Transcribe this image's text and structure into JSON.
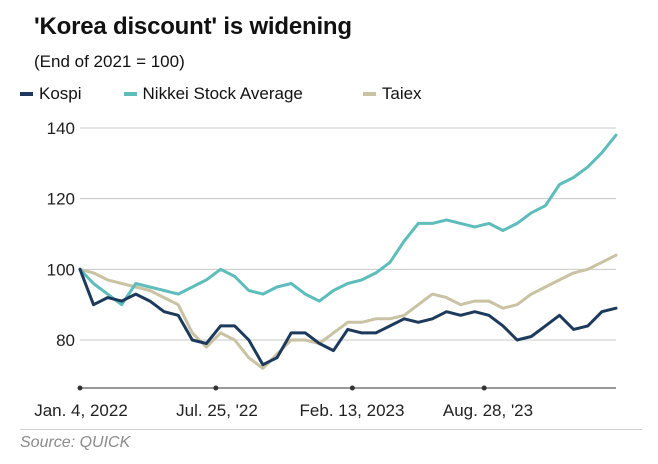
{
  "title": "'Korea discount' is widening",
  "subtitle": "(End of 2021 = 100)",
  "source": "Source: QUICK",
  "colors": {
    "kospi": "#1d3a5c",
    "nikkei": "#5dbdbb",
    "taiex": "#c9c2a3",
    "grid": "#c8c8c8",
    "axis": "#333333"
  },
  "chart_data": {
    "type": "line",
    "title": "'Korea discount' is widening",
    "subtitle": "(End of 2021 = 100)",
    "xlabel": "",
    "ylabel": "",
    "ylim": [
      70,
      140
    ],
    "yticks": [
      80,
      100,
      120,
      140
    ],
    "grid": "horizontal",
    "legend": "top-left",
    "xtick_labels": [
      "Jan. 4, 2022",
      "Jul. 25, '22",
      "Feb. 13, 2023",
      "Aug. 28, '23"
    ],
    "x": [
      "2022-01-04",
      "2022-01-24",
      "2022-02-14",
      "2022-03-07",
      "2022-03-28",
      "2022-04-18",
      "2022-05-09",
      "2022-05-30",
      "2022-06-20",
      "2022-07-11",
      "2022-08-01",
      "2022-08-22",
      "2022-09-12",
      "2022-10-03",
      "2022-10-24",
      "2022-11-14",
      "2022-12-05",
      "2022-12-26",
      "2023-01-16",
      "2023-02-06",
      "2023-02-27",
      "2023-03-20",
      "2023-04-10",
      "2023-05-01",
      "2023-05-22",
      "2023-06-12",
      "2023-07-03",
      "2023-07-24",
      "2023-08-14",
      "2023-09-04",
      "2023-09-25",
      "2023-10-16",
      "2023-11-06",
      "2023-11-27",
      "2023-12-18",
      "2024-01-08",
      "2024-01-29",
      "2024-02-19",
      "2024-03-11"
    ],
    "series": [
      {
        "name": "Kospi",
        "values": [
          100,
          90,
          92,
          91,
          93,
          91,
          88,
          87,
          80,
          79,
          84,
          84,
          80,
          73,
          75,
          82,
          82,
          79,
          77,
          83,
          82,
          82,
          84,
          86,
          85,
          86,
          88,
          87,
          88,
          87,
          84,
          80,
          81,
          84,
          87,
          83,
          84,
          88,
          89
        ]
      },
      {
        "name": "Nikkei Stock Average",
        "values": [
          100,
          96,
          93,
          90,
          96,
          95,
          94,
          93,
          95,
          97,
          100,
          98,
          94,
          93,
          95,
          96,
          93,
          91,
          94,
          96,
          97,
          99,
          102,
          108,
          113,
          113,
          114,
          113,
          112,
          113,
          111,
          113,
          116,
          118,
          124,
          126,
          129,
          133,
          138
        ]
      },
      {
        "name": "Taiex",
        "values": [
          100,
          99,
          97,
          96,
          95,
          94,
          92,
          90,
          82,
          78,
          82,
          80,
          75,
          72,
          76,
          80,
          80,
          79,
          82,
          85,
          85,
          86,
          86,
          87,
          90,
          93,
          92,
          90,
          91,
          91,
          89,
          90,
          93,
          95,
          97,
          99,
          100,
          102,
          104
        ]
      }
    ]
  }
}
